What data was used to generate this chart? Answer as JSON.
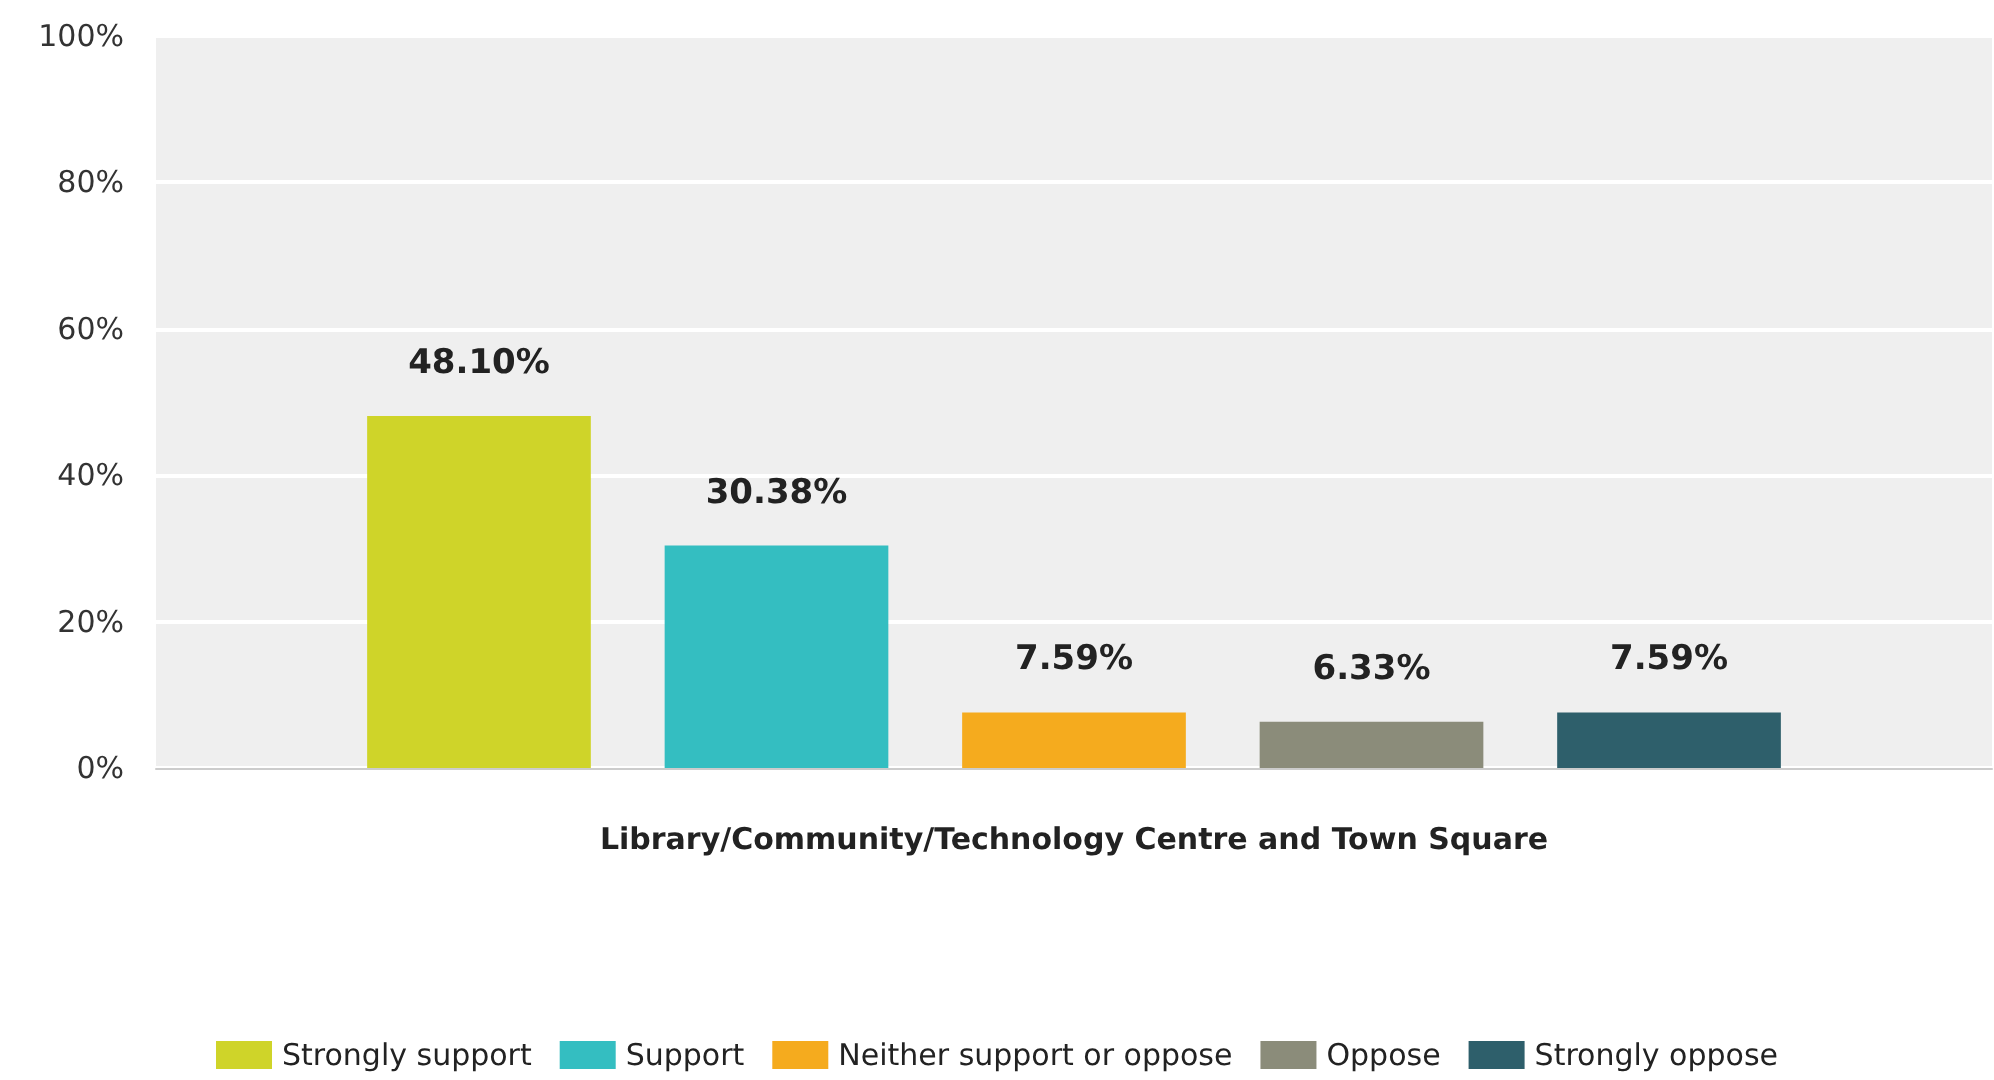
{
  "chart_data": {
    "type": "bar",
    "categories": [
      "Library/Community/Technology Centre and Town Square"
    ],
    "series": [
      {
        "name": "Strongly support",
        "color": "#cfd429",
        "values": [
          48.1
        ],
        "value_labels": [
          "48.10%"
        ]
      },
      {
        "name": "Support",
        "color": "#34bec1",
        "values": [
          30.38
        ],
        "value_labels": [
          "30.38%"
        ]
      },
      {
        "name": "Neither support or oppose",
        "color": "#f5ab1e",
        "values": [
          7.59
        ],
        "value_labels": [
          "7.59%"
        ]
      },
      {
        "name": "Oppose",
        "color": "#8b8c7a",
        "values": [
          6.33
        ],
        "value_labels": [
          "6.33%"
        ]
      },
      {
        "name": "Strongly oppose",
        "color": "#2e5f6b",
        "values": [
          7.59
        ],
        "value_labels": [
          "7.59%"
        ]
      }
    ],
    "ylim": [
      0,
      100
    ],
    "yticks": [
      {
        "value": 0,
        "label": "0%"
      },
      {
        "value": 20,
        "label": "20%"
      },
      {
        "value": 40,
        "label": "40%"
      },
      {
        "value": 60,
        "label": "60%"
      },
      {
        "value": 80,
        "label": "80%"
      },
      {
        "value": 100,
        "label": "100%"
      }
    ],
    "grid": "y",
    "legend": "bottom"
  }
}
